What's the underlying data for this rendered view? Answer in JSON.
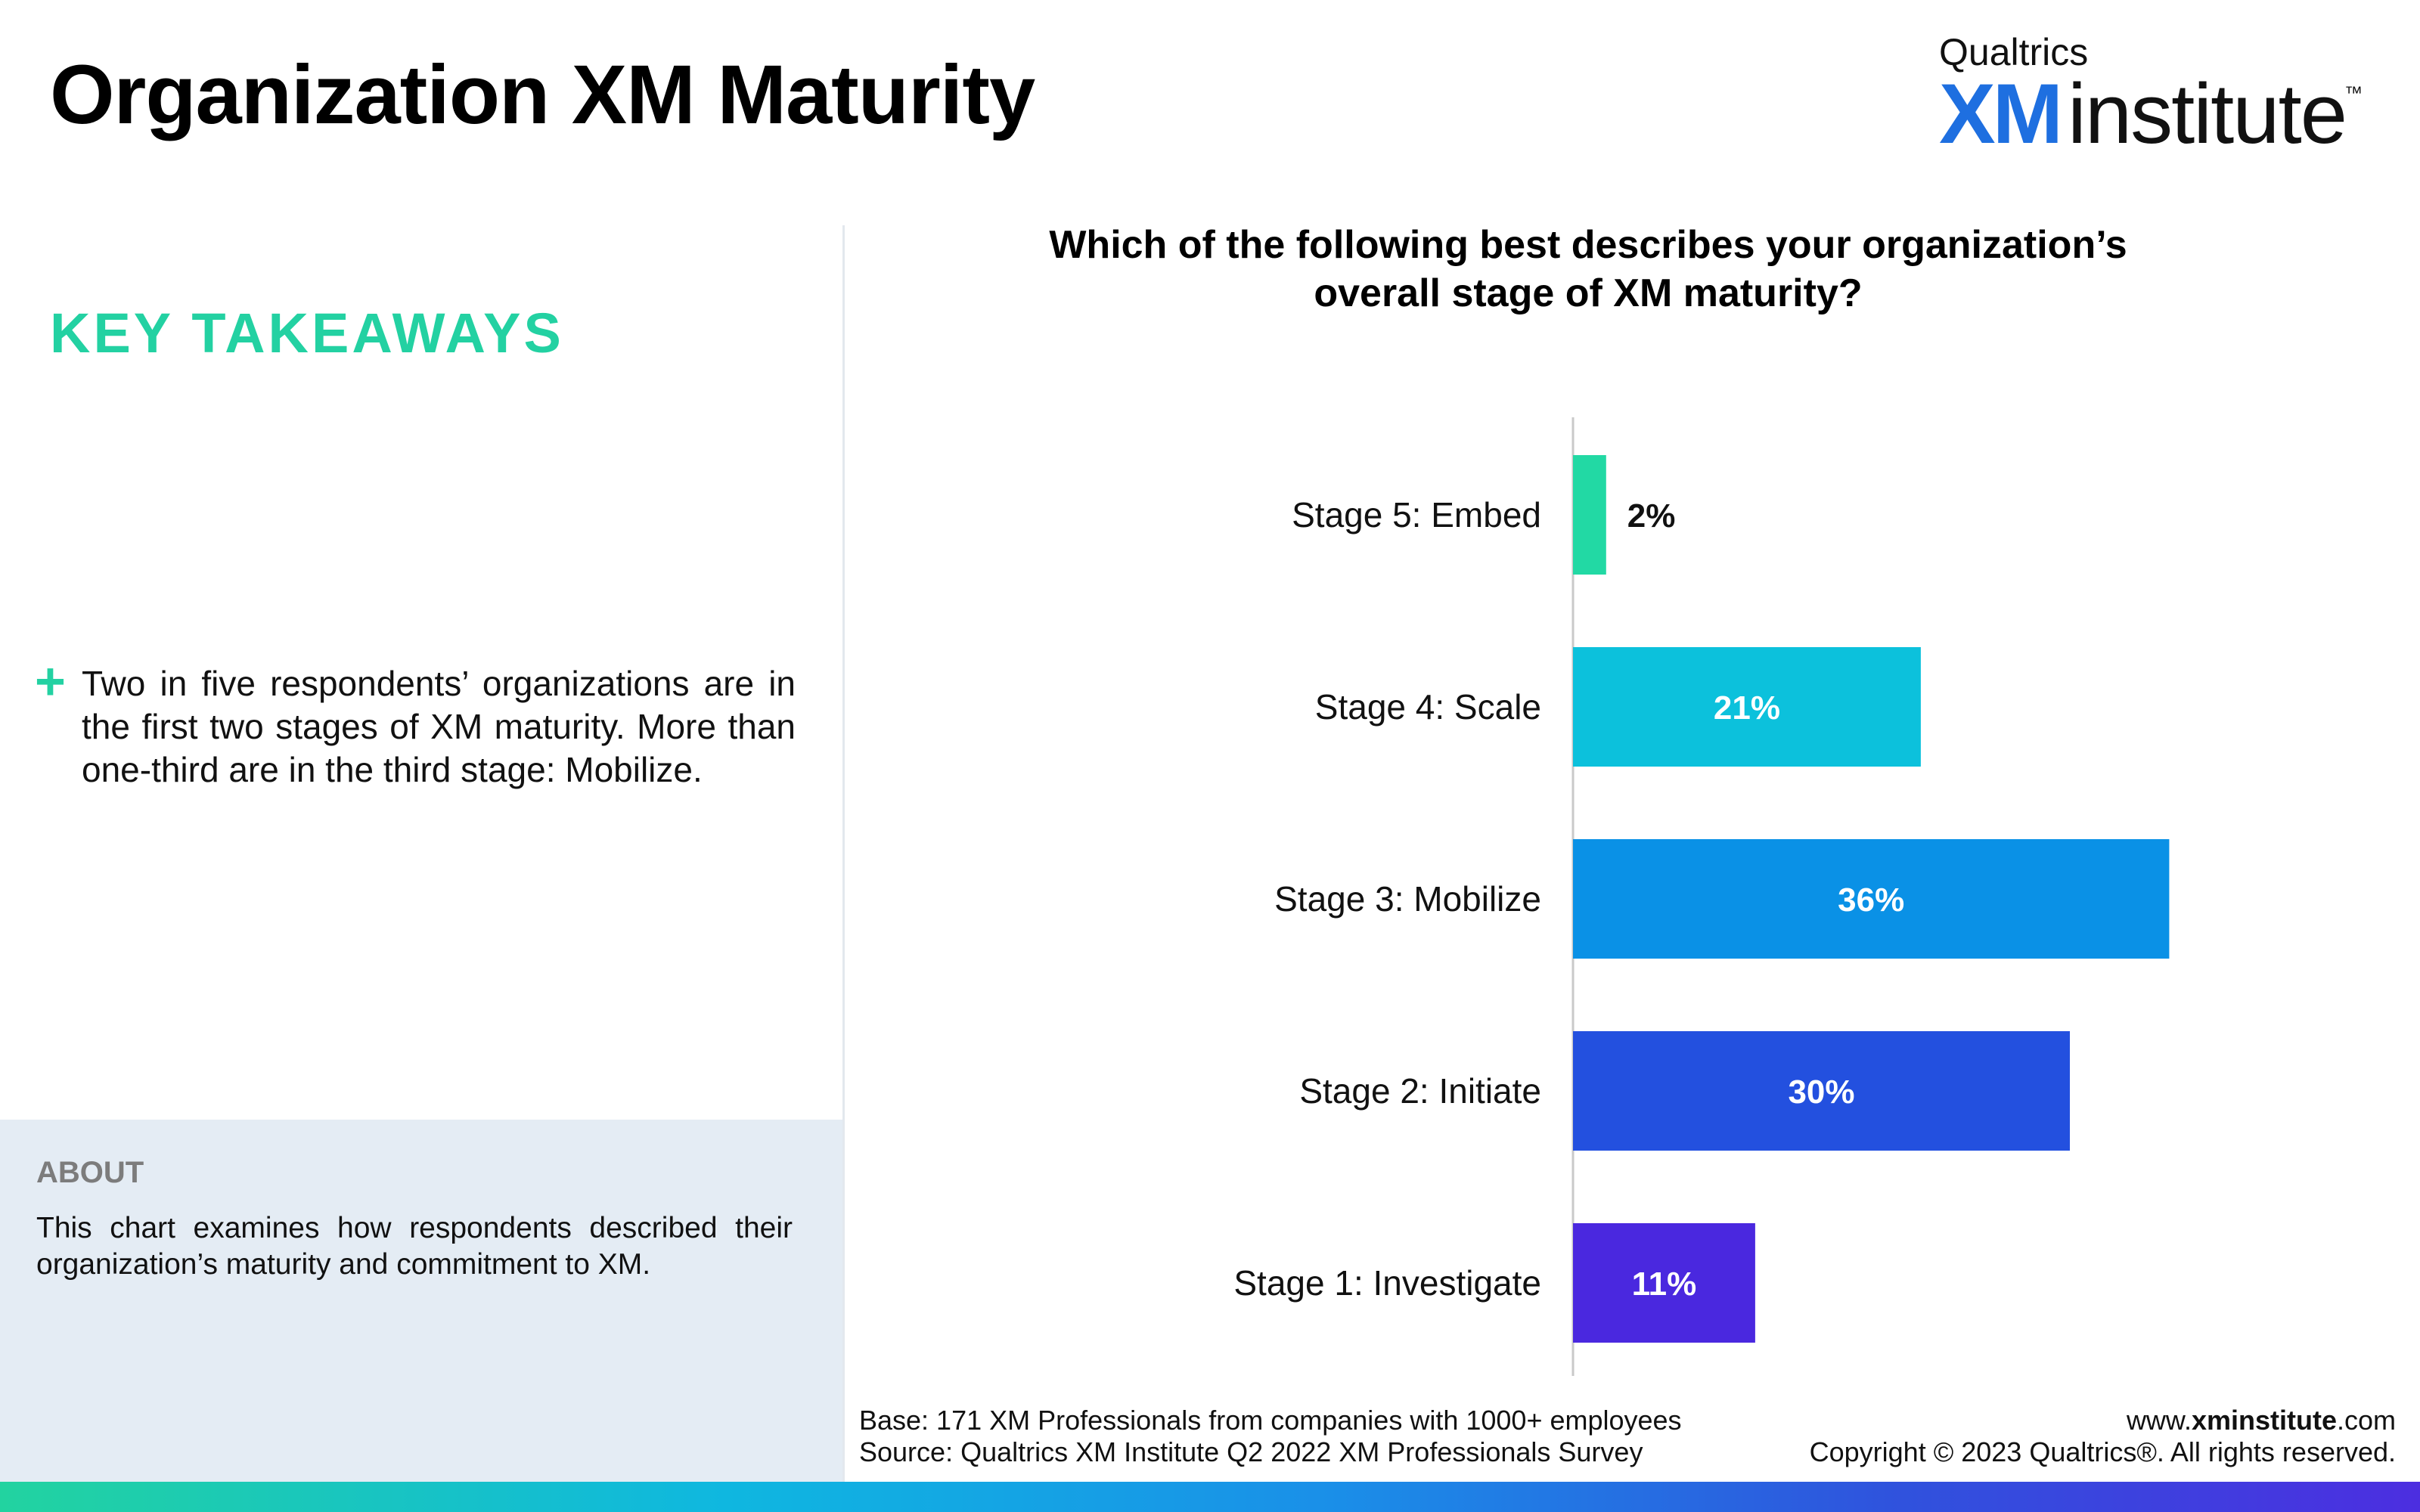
{
  "header": {
    "title": "Organization XM Maturity",
    "brand": {
      "top": "Qualtrics",
      "xm": "XM",
      "rest": "institute",
      "tm": "™"
    }
  },
  "takeaways": {
    "heading": "KEY TAKEAWAYS",
    "bullet": "+",
    "items": [
      "Two in five respondents’ organizations are in the first two stages of XM maturity. More than one-third are in the third stage: Mobilize."
    ]
  },
  "about": {
    "heading": "ABOUT",
    "text": "This chart examines how respondents described their organization’s maturity and commitment to XM."
  },
  "chart_data": {
    "type": "bar",
    "orientation": "horizontal",
    "title": "Which of the following best describes your organization’s overall stage of XM maturity?",
    "title_lines": [
      "Which of the following best describes your organization’s",
      "overall stage of XM maturity?"
    ],
    "categories": [
      "Stage 5: Embed",
      "Stage 4: Scale",
      "Stage 3: Mobilize",
      "Stage 2: Initiate",
      "Stage 1: Investigate"
    ],
    "values": [
      2,
      21,
      36,
      30,
      11
    ],
    "value_labels": [
      "2%",
      "21%",
      "36%",
      "30%",
      "11%"
    ],
    "colors": [
      "#22d9a4",
      "#0cc1dc",
      "#0a91e6",
      "#2350df",
      "#4a28df"
    ],
    "xlim": [
      0,
      40
    ],
    "unit": "%",
    "grid": false,
    "legend": "none"
  },
  "footer": {
    "base": "Base: 171 XM Professionals from companies with 1000+ employees",
    "source": "Source: Qualtrics XM Institute Q2 2022 XM Professionals Survey",
    "url_prefix": "www.",
    "url_bold": "xminstitute",
    "url_suffix": ".com",
    "copyright": "Copyright © 2023 Qualtrics®. All rights reserved."
  }
}
